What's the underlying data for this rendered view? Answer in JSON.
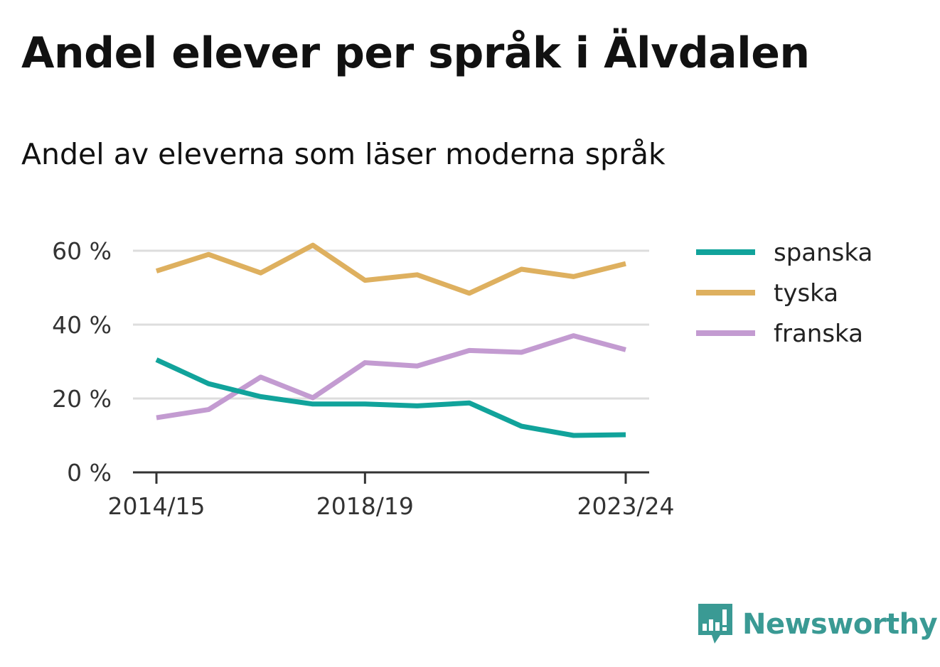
{
  "header": {
    "title": "Andel elever per språk i Älvdalen",
    "subtitle": "Andel av eleverna som läser moderna språk"
  },
  "chart_data": {
    "type": "line",
    "x": [
      "2014/15",
      "2015/16",
      "2016/17",
      "2017/18",
      "2018/19",
      "2019/20",
      "2020/21",
      "2021/22",
      "2022/23",
      "2023/24"
    ],
    "x_tick_labels": [
      "2014/15",
      "2018/19",
      "2023/24"
    ],
    "y_ticks": [
      0,
      20,
      40,
      60
    ],
    "y_tick_labels": [
      "0 %",
      "20 %",
      "40 %",
      "60 %"
    ],
    "ylim": [
      0,
      62
    ],
    "grid": true,
    "legend_position": "right",
    "series": [
      {
        "name": "spanska",
        "color": "#11a39b",
        "values": [
          30.5,
          24,
          20.5,
          18.5,
          18.5,
          18,
          18.8,
          12.5,
          10,
          10.2
        ]
      },
      {
        "name": "tyska",
        "color": "#deb05f",
        "values": [
          54.5,
          59,
          54,
          61.5,
          52,
          53.5,
          48.5,
          55,
          53,
          56.5
        ]
      },
      {
        "name": "franska",
        "color": "#c39bd1",
        "values": [
          14.8,
          17,
          25.8,
          20.2,
          29.7,
          28.8,
          33,
          32.5,
          37,
          33.2
        ]
      }
    ]
  },
  "brand": {
    "name": "Newsworthy",
    "color": "#3a9a94",
    "logo_icon": "chart-speech-bubble-icon"
  }
}
